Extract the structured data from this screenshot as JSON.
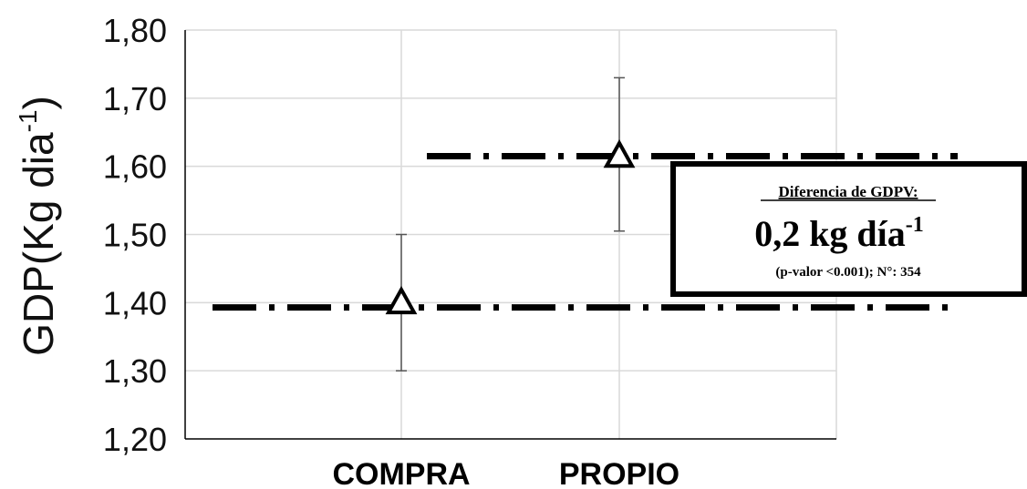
{
  "chart_data": {
    "type": "scatter",
    "ylabel": "GDP(Kg dia",
    "ylabel_sup": "-1",
    "ylabel_close": ")",
    "ylim": [
      1.2,
      1.8
    ],
    "yticks": [
      1.2,
      1.3,
      1.4,
      1.5,
      1.6,
      1.7,
      1.8
    ],
    "ytick_labels": [
      "1,20",
      "1,30",
      "1,40",
      "1,50",
      "1,60",
      "1,70",
      "1,80"
    ],
    "categories": [
      "COMPRA",
      "PROPIO"
    ],
    "points": [
      {
        "category": "COMPRA",
        "mean": 1.4,
        "low": 1.3,
        "high": 1.5
      },
      {
        "category": "PROPIO",
        "mean": 1.615,
        "low": 1.505,
        "high": 1.73
      }
    ],
    "reference_lines": [
      1.393,
      1.615
    ],
    "grid": "vertical-and-horizontal",
    "marker": "open-triangle"
  },
  "annotation": {
    "title": "Diferencia de GDPV:",
    "value": "0,2 kg día",
    "value_sup": "-1",
    "subtitle": "(p-valor <0.001); N°: 354"
  },
  "colors": {
    "grid": "#d9d9d9",
    "axis": "#000000",
    "text": "#111111"
  }
}
